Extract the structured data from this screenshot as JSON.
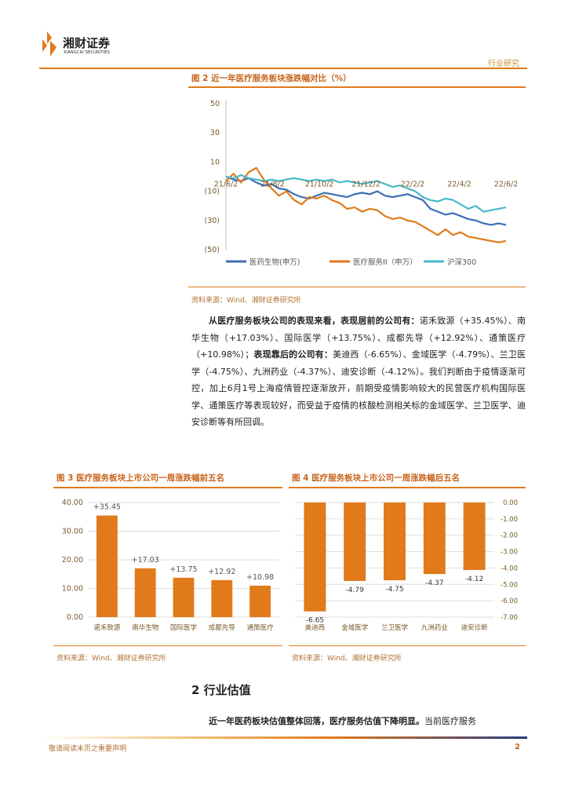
{
  "header": {
    "company_cn": "湘财证券",
    "company_en": "XIANGCAI SECURITIES",
    "category": "行业研究"
  },
  "figure2": {
    "title": "图  2  近一年医疗服务板块涨跌幅对比（%）",
    "source": "资料来源：Wind、湘财证券研究所",
    "chart_data": {
      "type": "line",
      "y_ticks": [
        "50",
        "30",
        "10",
        "(10)",
        "(30)",
        "(50)"
      ],
      "x_ticks": [
        "21/6/2",
        "21/8/2",
        "21/10/2",
        "21/12/2",
        "22/2/2",
        "22/4/2",
        "22/6/2"
      ],
      "ylim": [
        -50,
        50
      ],
      "series": [
        {
          "name": "医药生物(申万)",
          "color": "#3a6fb5",
          "points": [
            [
              0,
              0
            ],
            [
              4,
              -2
            ],
            [
              8,
              -3
            ],
            [
              12,
              -1
            ],
            [
              16,
              -4
            ],
            [
              20,
              -6
            ],
            [
              24,
              -5
            ],
            [
              28,
              -8
            ],
            [
              32,
              -9
            ],
            [
              36,
              -12
            ],
            [
              40,
              -14
            ],
            [
              44,
              -15
            ],
            [
              48,
              -13
            ],
            [
              52,
              -11
            ],
            [
              56,
              -12
            ],
            [
              60,
              -13
            ],
            [
              64,
              -14
            ],
            [
              68,
              -12
            ],
            [
              72,
              -11
            ],
            [
              76,
              -12
            ],
            [
              80,
              -10
            ],
            [
              84,
              -13
            ],
            [
              88,
              -14
            ],
            [
              92,
              -13
            ],
            [
              96,
              -12
            ],
            [
              100,
              -14
            ],
            [
              104,
              -16
            ],
            [
              108,
              -22
            ],
            [
              112,
              -24
            ],
            [
              116,
              -26
            ],
            [
              120,
              -25
            ],
            [
              124,
              -27
            ],
            [
              128,
              -29
            ],
            [
              132,
              -30
            ],
            [
              136,
              -32
            ],
            [
              140,
              -33
            ],
            [
              144,
              -32
            ],
            [
              148,
              -33
            ]
          ]
        },
        {
          "name": "医疗服务II（申万）",
          "color": "#e07a1b",
          "points": [
            [
              0,
              -3
            ],
            [
              4,
              2
            ],
            [
              8,
              -4
            ],
            [
              12,
              3
            ],
            [
              16,
              6
            ],
            [
              20,
              -2
            ],
            [
              24,
              -8
            ],
            [
              28,
              -13
            ],
            [
              32,
              -10
            ],
            [
              36,
              -16
            ],
            [
              40,
              -19
            ],
            [
              44,
              -14
            ],
            [
              48,
              -15
            ],
            [
              52,
              -13
            ],
            [
              56,
              -16
            ],
            [
              60,
              -18
            ],
            [
              64,
              -22
            ],
            [
              68,
              -21
            ],
            [
              72,
              -24
            ],
            [
              76,
              -22
            ],
            [
              80,
              -23
            ],
            [
              84,
              -27
            ],
            [
              88,
              -29
            ],
            [
              92,
              -28
            ],
            [
              96,
              -30
            ],
            [
              100,
              -31
            ],
            [
              104,
              -34
            ],
            [
              108,
              -37
            ],
            [
              112,
              -40
            ],
            [
              116,
              -36
            ],
            [
              120,
              -40
            ],
            [
              124,
              -38
            ],
            [
              128,
              -41
            ],
            [
              132,
              -42
            ],
            [
              136,
              -43
            ],
            [
              140,
              -44
            ],
            [
              144,
              -45
            ],
            [
              148,
              -44
            ]
          ]
        },
        {
          "name": "沪深300",
          "color": "#4ab8c8",
          "points": [
            [
              0,
              0
            ],
            [
              4,
              -1
            ],
            [
              8,
              1
            ],
            [
              12,
              -1
            ],
            [
              16,
              -2
            ],
            [
              20,
              -3
            ],
            [
              24,
              -2
            ],
            [
              28,
              -3
            ],
            [
              32,
              -2
            ],
            [
              36,
              -1
            ],
            [
              40,
              -2
            ],
            [
              44,
              -3
            ],
            [
              48,
              -2
            ],
            [
              52,
              -3
            ],
            [
              56,
              -2
            ],
            [
              60,
              -4
            ],
            [
              64,
              -3
            ],
            [
              68,
              -4
            ],
            [
              72,
              -5
            ],
            [
              76,
              -4
            ],
            [
              80,
              -3
            ],
            [
              84,
              -5
            ],
            [
              88,
              -7
            ],
            [
              92,
              -6
            ],
            [
              96,
              -8
            ],
            [
              100,
              -10
            ],
            [
              104,
              -14
            ],
            [
              108,
              -16
            ],
            [
              112,
              -17
            ],
            [
              116,
              -15
            ],
            [
              120,
              -16
            ],
            [
              124,
              -19
            ],
            [
              128,
              -22
            ],
            [
              132,
              -20
            ],
            [
              136,
              -24
            ],
            [
              140,
              -23
            ],
            [
              144,
              -22
            ],
            [
              148,
              -21
            ]
          ]
        }
      ]
    }
  },
  "paragraph1": {
    "lead": "从医疗服务板块公司的表现来看，表现居前的公司有：",
    "top_text": "诺禾致源（+35.45%）、南华生物（+17.03%）、国际医学（+13.75%）、成都先导（+12.92%）、通策医疗（+10.98%）；",
    "lag_lead": "表现靠后的公司有：",
    "lag_text": "美迪西（-6.65%）、金域医学（-4.79%）、兰卫医学（-4.75%）、九洲药业（-4.37%）、迪安诊断（-4.12%）。我们判断由于疫情逐渐可控，加上6月1号上海疫情管控逐渐放开，前期受疫情影响较大的民营医疗机构国际医学、通策医疗等表现较好，而受益于疫情的核酸检测相关标的金域医学、兰卫医学、迪安诊断等有所回调。"
  },
  "figure3": {
    "title": "图  3  医疗服务板块上市公司一周涨跌幅前五名",
    "source": "资料来源：Wind、湘财证券研究所",
    "chart_data": {
      "type": "bar",
      "categories": [
        "诺禾致源",
        "南华生物",
        "国际医学",
        "成都先导",
        "通策医疗"
      ],
      "values": [
        35.45,
        17.03,
        13.75,
        12.92,
        10.98
      ],
      "labels": [
        "+35.45",
        "+17.03",
        "+13.75",
        "+12.92",
        "+10.98"
      ],
      "y_ticks": [
        "40.00",
        "30.00",
        "20.00",
        "10.00",
        "0.00"
      ],
      "ylim": [
        0,
        40
      ],
      "color": "#e07a1b"
    }
  },
  "figure4": {
    "title": "图  4  医疗服务板块上市公司一周涨跌幅后五名",
    "source": "资料来源：Wind、湘财证券研究所",
    "chart_data": {
      "type": "bar",
      "categories": [
        "美迪西",
        "金域医学",
        "兰卫医学",
        "九洲药业",
        "迪安诊断"
      ],
      "values": [
        -6.65,
        -4.79,
        -4.75,
        -4.37,
        -4.12
      ],
      "labels": [
        "-6.65",
        "-4.79",
        "-4.75",
        "-4.37",
        "-4.12"
      ],
      "y_ticks": [
        "0.00",
        "-1.00",
        "-2.00",
        "-3.00",
        "-4.00",
        "-5.00",
        "-6.00",
        "-7.00"
      ],
      "ylim": [
        -7,
        0
      ],
      "color": "#e07a1b"
    }
  },
  "section2": {
    "title": "2 行业估值",
    "lead": "近一年医药板块估值整体回落，医疗服务估值下降明显。",
    "text": "当前医疗服务"
  },
  "footer": {
    "disclaimer": "敬请阅读末页之重要声明",
    "page": "2"
  }
}
